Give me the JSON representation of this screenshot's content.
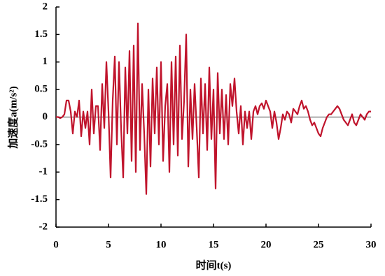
{
  "chart_data": {
    "type": "line",
    "x_label": "时间t(s)",
    "y_label": "加速度a(m/s²)",
    "xlim": [
      0,
      30
    ],
    "xticks": [
      0,
      5,
      10,
      15,
      20,
      25,
      30
    ],
    "ylim": [
      -2,
      2
    ],
    "yticks": [
      2,
      1.5,
      1,
      0.5,
      0,
      -0.5,
      -1,
      -1.5,
      -2
    ],
    "zero_line": true,
    "grid": false,
    "x": [
      0,
      0.2,
      0.4,
      0.6,
      0.8,
      1,
      1.2,
      1.4,
      1.6,
      1.8,
      2,
      2.2,
      2.4,
      2.6,
      2.8,
      3,
      3.2,
      3.4,
      3.6,
      3.8,
      4,
      4.2,
      4.4,
      4.6,
      4.8,
      5,
      5.2,
      5.4,
      5.6,
      5.8,
      6,
      6.2,
      6.4,
      6.6,
      6.8,
      7,
      7.2,
      7.4,
      7.6,
      7.8,
      8,
      8.2,
      8.4,
      8.6,
      8.8,
      9,
      9.2,
      9.4,
      9.6,
      9.8,
      10,
      10.2,
      10.4,
      10.6,
      10.8,
      11,
      11.2,
      11.4,
      11.6,
      11.8,
      12,
      12.2,
      12.4,
      12.6,
      12.8,
      13,
      13.2,
      13.4,
      13.6,
      13.8,
      14,
      14.2,
      14.4,
      14.6,
      14.8,
      15,
      15.2,
      15.4,
      15.6,
      15.8,
      16,
      16.2,
      16.4,
      16.6,
      16.8,
      17,
      17.2,
      17.4,
      17.6,
      17.8,
      18,
      18.2,
      18.4,
      18.6,
      18.8,
      19,
      19.2,
      19.4,
      19.6,
      19.8,
      20,
      20.2,
      20.4,
      20.6,
      20.8,
      21,
      21.2,
      21.4,
      21.6,
      21.8,
      22,
      22.2,
      22.4,
      22.6,
      22.8,
      23,
      23.2,
      23.4,
      23.6,
      23.8,
      24,
      24.2,
      24.4,
      24.6,
      24.8,
      25,
      25.2,
      25.4,
      25.6,
      25.8,
      26,
      26.2,
      26.4,
      26.6,
      26.8,
      27,
      27.2,
      27.4,
      27.6,
      27.8,
      28,
      28.2,
      28.4,
      28.6,
      28.8,
      29,
      29.2,
      29.4,
      29.6,
      29.8,
      30
    ],
    "series": [
      {
        "color": "#c0142c",
        "values": [
          0,
          0,
          -0.02,
          0,
          0.05,
          0.3,
          0.3,
          0.1,
          -0.3,
          0.1,
          0,
          0.3,
          -0.35,
          0.1,
          -0.2,
          0.1,
          -0.5,
          0.5,
          -0.3,
          0.2,
          0.2,
          -0.6,
          0.6,
          -0.2,
          1.0,
          0.1,
          -1.1,
          0.3,
          1.1,
          -0.5,
          1.0,
          -0.2,
          -1.1,
          0.9,
          -0.3,
          1.2,
          -0.8,
          1.3,
          -1.0,
          1.7,
          -0.6,
          0.6,
          -0.3,
          -1.4,
          0.5,
          -0.9,
          0.7,
          -0.3,
          0.9,
          -0.5,
          1.0,
          -0.8,
          0.2,
          0.6,
          -1.0,
          1.0,
          -0.5,
          1.1,
          -0.7,
          1.3,
          -0.4,
          0.3,
          1.5,
          -0.9,
          0.5,
          -0.4,
          0.6,
          -0.2,
          -1.1,
          0.7,
          -0.3,
          0.6,
          -0.6,
          0.9,
          -0.4,
          0.5,
          -1.3,
          0.8,
          -0.3,
          0.5,
          -0.4,
          0.4,
          -0.5,
          0.6,
          0.2,
          0.7,
          0.1,
          -0.3,
          0.2,
          -0.5,
          0.1,
          -0.2,
          0.1,
          -0.4,
          0.1,
          0.2,
          0.05,
          0.2,
          0.25,
          0.15,
          0.3,
          0.2,
          0.1,
          -0.2,
          0.1,
          -0.1,
          -0.4,
          -0.2,
          0.05,
          -0.05,
          0.1,
          0.05,
          -0.1,
          0.15,
          0.1,
          0.05,
          0.2,
          0.3,
          0.15,
          0.2,
          0.1,
          -0.05,
          -0.15,
          -0.1,
          -0.2,
          -0.3,
          -0.35,
          -0.2,
          -0.1,
          0,
          0.05,
          0.05,
          0.1,
          0.15,
          0.2,
          0.15,
          0.05,
          -0.05,
          -0.1,
          -0.15,
          -0.05,
          0.05,
          -0.1,
          -0.15,
          -0.05,
          0.05,
          0,
          -0.05,
          0.05,
          0.1,
          0.1
        ]
      }
    ]
  }
}
